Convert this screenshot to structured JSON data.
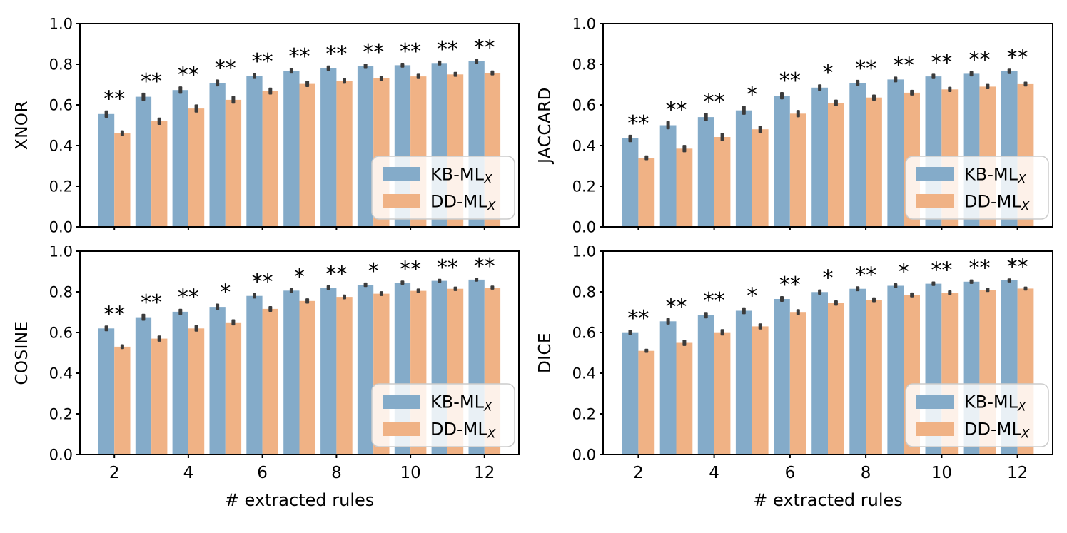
{
  "figure": {
    "background": "#ffffff"
  },
  "colors": {
    "kb": "#84ABC9",
    "dd": "#F0B285",
    "error_bar": "#3B3B3B",
    "axis": "#000000",
    "text": "#000000",
    "legend_border": "#CCCCCC",
    "legend_background": "rgba(255,255,255,0.82)"
  },
  "legend": {
    "position": "lower right",
    "items": [
      {
        "series": "kb",
        "label": "KB-ML",
        "subscript": "X"
      },
      {
        "series": "dd",
        "label": "DD-ML",
        "subscript": "X"
      }
    ]
  },
  "x_axis": {
    "label": "# extracted rules",
    "ticks": [
      2,
      4,
      6,
      8,
      10,
      12
    ]
  },
  "chart_data": [
    {
      "type": "bar",
      "metric": "XNOR",
      "ylabel": "XNOR",
      "xlabel": "",
      "show_x_tick_labels": false,
      "categories": [
        2,
        3,
        4,
        5,
        6,
        7,
        8,
        9,
        10,
        11,
        12
      ],
      "xticks": [
        2,
        4,
        6,
        8,
        10,
        12
      ],
      "ylim": [
        0.0,
        1.0
      ],
      "yticks": [
        0.0,
        0.2,
        0.4,
        0.6,
        0.8,
        1.0
      ],
      "legend_position": "lower right",
      "series": [
        {
          "name": "KB-ML_X",
          "color": "kb",
          "values": [
            0.555,
            0.64,
            0.673,
            0.708,
            0.743,
            0.768,
            0.781,
            0.79,
            0.795,
            0.806,
            0.814
          ],
          "errors": [
            0.018,
            0.02,
            0.018,
            0.017,
            0.015,
            0.014,
            0.013,
            0.013,
            0.012,
            0.012,
            0.012
          ]
        },
        {
          "name": "DD-ML_X",
          "color": "dd",
          "values": [
            0.461,
            0.52,
            0.582,
            0.625,
            0.668,
            0.703,
            0.718,
            0.73,
            0.74,
            0.75,
            0.757
          ],
          "errors": [
            0.014,
            0.018,
            0.02,
            0.019,
            0.017,
            0.015,
            0.014,
            0.013,
            0.013,
            0.012,
            0.012
          ]
        }
      ],
      "significance": [
        "**",
        "**",
        "**",
        "**",
        "**",
        "**",
        "**",
        "**",
        "**",
        "**",
        "**"
      ]
    },
    {
      "type": "bar",
      "metric": "JACCARD",
      "ylabel": "JACCARD",
      "xlabel": "",
      "show_x_tick_labels": false,
      "categories": [
        2,
        3,
        4,
        5,
        6,
        7,
        8,
        9,
        10,
        11,
        12
      ],
      "xticks": [
        2,
        4,
        6,
        8,
        10,
        12
      ],
      "ylim": [
        0.0,
        1.0
      ],
      "yticks": [
        0.0,
        0.2,
        0.4,
        0.6,
        0.8,
        1.0
      ],
      "legend_position": "lower right",
      "series": [
        {
          "name": "KB-ML_X",
          "color": "kb",
          "values": [
            0.435,
            0.5,
            0.54,
            0.573,
            0.645,
            0.685,
            0.708,
            0.725,
            0.74,
            0.753,
            0.765
          ],
          "errors": [
            0.018,
            0.02,
            0.02,
            0.022,
            0.018,
            0.016,
            0.015,
            0.014,
            0.013,
            0.013,
            0.013
          ]
        },
        {
          "name": "DD-ML_X",
          "color": "dd",
          "values": [
            0.34,
            0.385,
            0.442,
            0.48,
            0.557,
            0.61,
            0.636,
            0.66,
            0.676,
            0.69,
            0.702
          ],
          "errors": [
            0.012,
            0.018,
            0.02,
            0.018,
            0.018,
            0.016,
            0.015,
            0.014,
            0.013,
            0.013,
            0.012
          ]
        }
      ],
      "significance": [
        "**",
        "**",
        "**",
        "*",
        "**",
        "*",
        "**",
        "**",
        "**",
        "**",
        "**"
      ]
    },
    {
      "type": "bar",
      "metric": "COSINE",
      "ylabel": "COSINE",
      "xlabel": "# extracted rules",
      "show_x_tick_labels": true,
      "categories": [
        2,
        3,
        4,
        5,
        6,
        7,
        8,
        9,
        10,
        11,
        12
      ],
      "xticks": [
        2,
        4,
        6,
        8,
        10,
        12
      ],
      "ylim": [
        0.0,
        1.0
      ],
      "yticks": [
        0.0,
        0.2,
        0.4,
        0.6,
        0.8,
        1.0
      ],
      "legend_position": "lower right",
      "series": [
        {
          "name": "KB-ML_X",
          "color": "kb",
          "values": [
            0.62,
            0.675,
            0.702,
            0.726,
            0.78,
            0.806,
            0.821,
            0.835,
            0.845,
            0.854,
            0.86
          ],
          "errors": [
            0.014,
            0.017,
            0.015,
            0.016,
            0.013,
            0.012,
            0.011,
            0.011,
            0.01,
            0.01,
            0.01
          ]
        },
        {
          "name": "DD-ML_X",
          "color": "dd",
          "values": [
            0.53,
            0.57,
            0.62,
            0.65,
            0.716,
            0.755,
            0.775,
            0.791,
            0.805,
            0.815,
            0.821
          ],
          "errors": [
            0.012,
            0.015,
            0.016,
            0.015,
            0.014,
            0.013,
            0.012,
            0.012,
            0.011,
            0.011,
            0.01
          ]
        }
      ],
      "significance": [
        "**",
        "**",
        "**",
        "*",
        "**",
        "*",
        "**",
        "*",
        "**",
        "**",
        "**"
      ]
    },
    {
      "type": "bar",
      "metric": "DICE",
      "ylabel": "DICE",
      "xlabel": "# extracted rules",
      "show_x_tick_labels": true,
      "categories": [
        2,
        3,
        4,
        5,
        6,
        7,
        8,
        9,
        10,
        11,
        12
      ],
      "xticks": [
        2,
        4,
        6,
        8,
        10,
        12
      ],
      "ylim": [
        0.0,
        1.0
      ],
      "yticks": [
        0.0,
        0.2,
        0.4,
        0.6,
        0.8,
        1.0
      ],
      "legend_position": "lower right",
      "series": [
        {
          "name": "KB-ML_X",
          "color": "kb",
          "values": [
            0.601,
            0.655,
            0.685,
            0.707,
            0.765,
            0.799,
            0.815,
            0.83,
            0.84,
            0.85,
            0.856
          ],
          "errors": [
            0.013,
            0.016,
            0.016,
            0.017,
            0.014,
            0.013,
            0.012,
            0.012,
            0.011,
            0.011,
            0.01
          ]
        },
        {
          "name": "DD-ML_X",
          "color": "dd",
          "values": [
            0.51,
            0.549,
            0.601,
            0.63,
            0.701,
            0.745,
            0.761,
            0.785,
            0.796,
            0.81,
            0.816
          ],
          "errors": [
            0.01,
            0.015,
            0.016,
            0.015,
            0.014,
            0.013,
            0.012,
            0.012,
            0.011,
            0.011,
            0.01
          ]
        }
      ],
      "significance": [
        "**",
        "**",
        "**",
        "*",
        "**",
        "*",
        "**",
        "*",
        "**",
        "**",
        "**"
      ]
    }
  ]
}
